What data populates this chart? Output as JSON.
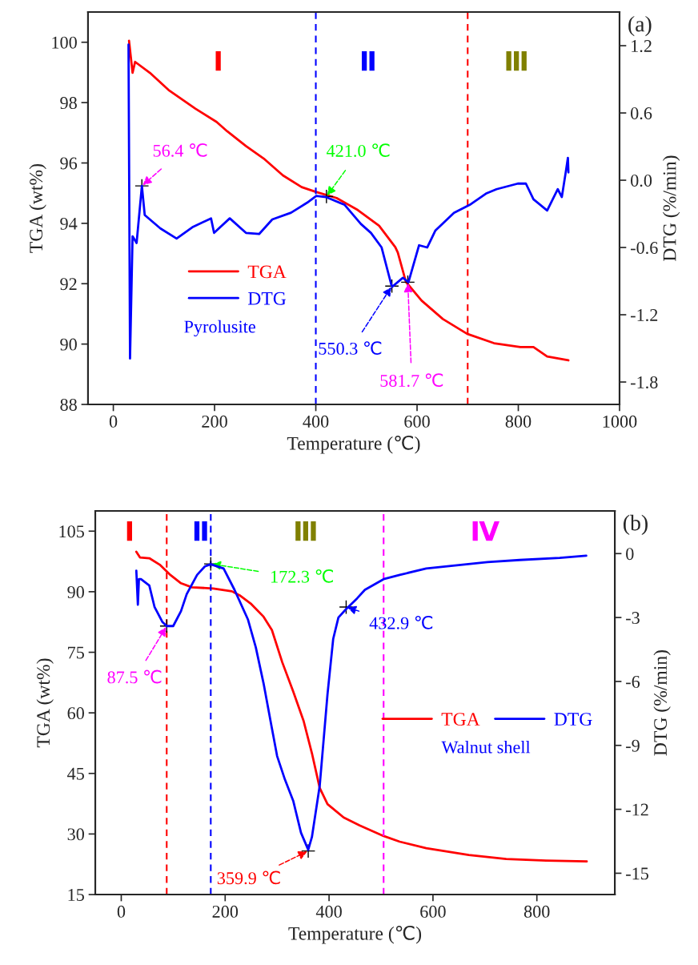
{
  "chart_data": [
    {
      "type": "line",
      "title": "(a)",
      "xlabel": "Temperature (℃)",
      "ylabel": "TGA (wt%)",
      "y2label": "DTG (%/min)",
      "xlim": [
        -50,
        1000
      ],
      "xticks": [
        0,
        200,
        400,
        600,
        800,
        1000
      ],
      "ylim": [
        88,
        101
      ],
      "yticks": [
        88,
        90,
        92,
        94,
        96,
        98,
        100
      ],
      "y2lim": [
        -2.0,
        1.5
      ],
      "y2ticks": [
        -1.8,
        -1.2,
        -0.6,
        {
          "value": 0,
          "label": "0.0"
        },
        0.6,
        1.2
      ],
      "grid": false,
      "legend": "center left",
      "series": [
        {
          "name": "TGA",
          "color": "#ff0000",
          "x": [
            31,
            38,
            43,
            72,
            109,
            162,
            204,
            225,
            262,
            299,
            335,
            372,
            399,
            441,
            483,
            525,
            557,
            562,
            578,
            609,
            651,
            699,
            752,
            804,
            830,
            857,
            899
          ],
          "values": [
            100.05,
            98.99,
            99.35,
            98.99,
            98.42,
            97.8,
            97.36,
            97.05,
            96.56,
            96.12,
            95.59,
            95.2,
            95.05,
            94.84,
            94.44,
            93.92,
            93.21,
            93.03,
            92.06,
            91.44,
            90.83,
            90.34,
            90.03,
            89.9,
            89.9,
            89.59,
            89.46
          ]
        },
        {
          "name": "DTG",
          "color": "#0000ff",
          "axis": "y2",
          "x": [
            30,
            33,
            38,
            46,
            56.4,
            62,
            93,
            125,
            156,
            193,
            199,
            230,
            262,
            288,
            314,
            351,
            383,
            401,
            420,
            457,
            489,
            509,
            530,
            549,
            551,
            572,
            583,
            604,
            620,
            636,
            673,
            704,
            736,
            757,
            799,
            815,
            830,
            857,
            878,
            886,
            894,
            898,
            899
          ],
          "values": [
            1.21,
            -1.59,
            -0.5,
            -0.56,
            -0.05,
            -0.31,
            -0.43,
            -0.52,
            -0.42,
            -0.34,
            -0.47,
            -0.34,
            -0.47,
            -0.48,
            -0.35,
            -0.29,
            -0.2,
            -0.14,
            -0.15,
            -0.22,
            -0.39,
            -0.47,
            -0.6,
            -0.93,
            -0.95,
            -0.87,
            -0.91,
            -0.58,
            -0.6,
            -0.45,
            -0.29,
            -0.22,
            -0.12,
            -0.08,
            -0.03,
            -0.03,
            -0.17,
            -0.27,
            -0.08,
            -0.15,
            0.08,
            0.2,
            0.07
          ]
        }
      ],
      "ref_lines": [
        {
          "axis": "x",
          "value": 400,
          "color": "#0000ff",
          "line_style": "dashed"
        },
        {
          "axis": "x",
          "value": 700,
          "color": "#ff0000",
          "line_style": "dashed"
        }
      ],
      "annotations": [
        "Ⅰ",
        "Ⅱ",
        "Ⅲ",
        {
          "text": "56.4 ℃",
          "x": 56.4,
          "y": 95.24
        },
        {
          "text": "421.0 ℃",
          "x": 421.0,
          "y": 94.89
        },
        {
          "text": "550.3 ℃",
          "x": 550.3,
          "y": 91.92
        },
        {
          "text": "581.7 ℃",
          "x": 581.7,
          "y": 92.05
        },
        "Pyrolusite"
      ]
    },
    {
      "type": "line",
      "title": "(b)",
      "xlabel": "Temperature (℃)",
      "ylabel": "TGA (wt%)",
      "y2label": "DTG (%/min)",
      "xlim": [
        -50,
        950
      ],
      "xticks": [
        0,
        200,
        400,
        600,
        800
      ],
      "ylim": [
        15,
        110
      ],
      "yticks": [
        15,
        30,
        45,
        60,
        75,
        90,
        105
      ],
      "y2lim": [
        -16,
        2
      ],
      "y2ticks": [
        -15,
        -12,
        -9,
        -6,
        -3,
        0
      ],
      "grid": false,
      "legend": "center right",
      "series": [
        {
          "name": "TGA",
          "color": "#ff0000",
          "x": [
            29,
            36,
            54,
            74,
            95,
            115,
            136,
            177,
            213,
            228,
            249,
            274,
            290,
            310,
            331,
            351,
            367,
            382,
            397,
            428,
            459,
            505,
            536,
            587,
            669,
            741,
            818,
            896
          ],
          "values": [
            99.9,
            98.5,
            98.3,
            96.7,
            94.1,
            92.1,
            91.1,
            90.8,
            90.1,
            89.1,
            87.1,
            83.8,
            80.5,
            72.5,
            65.3,
            58.0,
            50.0,
            41.4,
            37.4,
            34.1,
            32.1,
            29.5,
            28.1,
            26.5,
            24.8,
            23.8,
            23.4,
            23.2
          ]
        },
        {
          "name": "DTG",
          "color": "#0000ff",
          "axis": "y2",
          "x": [
            29,
            32,
            34,
            38,
            54,
            64,
            79,
            87.5,
            100,
            115,
            126,
            146,
            161,
            172.3,
            197,
            218,
            244,
            259,
            274,
            290,
            300,
            315,
            331,
            346,
            359.9,
            367,
            382,
            397,
            408,
            418,
            432.9,
            454,
            469,
            505,
            536,
            587,
            705,
            767,
            844,
            895
          ],
          "values": [
            -0.8,
            -2.4,
            -1.2,
            -1.2,
            -1.5,
            -2.5,
            -3.2,
            -3.4,
            -3.4,
            -2.7,
            -1.9,
            -1.0,
            -0.6,
            -0.5,
            -0.7,
            -1.7,
            -3.1,
            -4.4,
            -6.1,
            -8.2,
            -9.5,
            -10.6,
            -11.6,
            -13.1,
            -13.9,
            -13.3,
            -10.9,
            -6.6,
            -4.0,
            -3.0,
            -2.6,
            -2.1,
            -1.7,
            -1.2,
            -1.0,
            -0.7,
            -0.4,
            -0.3,
            -0.2,
            -0.1
          ]
        }
      ],
      "ref_lines": [
        {
          "axis": "x",
          "value": 87.5,
          "color": "#ff0000",
          "line_style": "dashed"
        },
        {
          "axis": "x",
          "value": 172.3,
          "color": "#0000ff",
          "line_style": "dashed"
        },
        {
          "axis": "x",
          "value": 505,
          "color": "#ff00ff",
          "line_style": "dashed"
        }
      ],
      "annotations": [
        "Ⅰ",
        "Ⅱ",
        "Ⅲ",
        "Ⅳ",
        {
          "text": "87.5 ℃",
          "x": 87.5,
          "y": 81.5
        },
        {
          "text": "172.3 ℃",
          "x": 172.3,
          "y": 96.9
        },
        {
          "text": "359.9 ℃",
          "x": 359.9,
          "y": 25.8
        },
        {
          "text": "432.9 ℃",
          "x": 432.9,
          "y": 86.2
        },
        "Walnut shell"
      ]
    }
  ]
}
